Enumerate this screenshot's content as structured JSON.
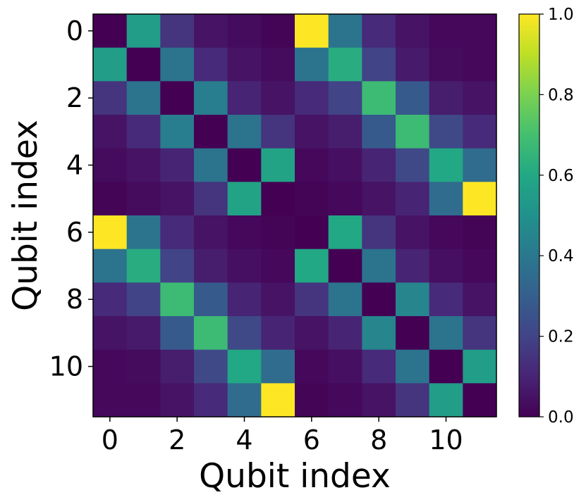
{
  "chart_data": {
    "type": "heatmap",
    "title": "",
    "xlabel": "Qubit index",
    "ylabel": "Qubit index",
    "rows": 12,
    "cols": 12,
    "x_ticks": [
      "0",
      "2",
      "4",
      "6",
      "8",
      "10"
    ],
    "y_ticks": [
      "0",
      "2",
      "4",
      "6",
      "8",
      "10"
    ],
    "x_tick_values": [
      0,
      2,
      4,
      6,
      8,
      10
    ],
    "y_tick_values": [
      0,
      2,
      4,
      6,
      8,
      10
    ],
    "colorbar": {
      "ticks": [
        "0.0",
        "0.2",
        "0.4",
        "0.6",
        "0.8",
        "1.0"
      ],
      "tick_values": [
        0.0,
        0.2,
        0.4,
        0.6,
        0.8,
        1.0
      ],
      "vmin": 0.0,
      "vmax": 1.0,
      "colormap": "viridis"
    },
    "values": [
      [
        0.0,
        0.55,
        0.15,
        0.05,
        0.03,
        0.01,
        1.0,
        0.38,
        0.12,
        0.05,
        0.02,
        0.02
      ],
      [
        0.55,
        0.0,
        0.38,
        0.12,
        0.05,
        0.03,
        0.38,
        0.62,
        0.2,
        0.07,
        0.03,
        0.02
      ],
      [
        0.15,
        0.38,
        0.0,
        0.42,
        0.1,
        0.05,
        0.12,
        0.2,
        0.68,
        0.28,
        0.08,
        0.05
      ],
      [
        0.05,
        0.12,
        0.42,
        0.0,
        0.38,
        0.15,
        0.05,
        0.08,
        0.28,
        0.68,
        0.22,
        0.12
      ],
      [
        0.03,
        0.05,
        0.1,
        0.38,
        0.0,
        0.58,
        0.02,
        0.04,
        0.1,
        0.22,
        0.6,
        0.35
      ],
      [
        0.01,
        0.03,
        0.05,
        0.15,
        0.58,
        0.0,
        0.01,
        0.02,
        0.05,
        0.1,
        0.35,
        1.0
      ],
      [
        1.0,
        0.38,
        0.12,
        0.05,
        0.02,
        0.01,
        0.0,
        0.6,
        0.15,
        0.05,
        0.02,
        0.01
      ],
      [
        0.38,
        0.62,
        0.2,
        0.08,
        0.04,
        0.02,
        0.6,
        0.0,
        0.38,
        0.1,
        0.04,
        0.02
      ],
      [
        0.12,
        0.2,
        0.68,
        0.28,
        0.1,
        0.05,
        0.15,
        0.38,
        0.0,
        0.45,
        0.12,
        0.05
      ],
      [
        0.05,
        0.07,
        0.28,
        0.68,
        0.22,
        0.1,
        0.05,
        0.1,
        0.45,
        0.0,
        0.38,
        0.15
      ],
      [
        0.02,
        0.03,
        0.08,
        0.22,
        0.6,
        0.35,
        0.02,
        0.04,
        0.12,
        0.38,
        0.0,
        0.55
      ],
      [
        0.02,
        0.02,
        0.05,
        0.12,
        0.35,
        1.0,
        0.01,
        0.02,
        0.05,
        0.15,
        0.55,
        0.0
      ]
    ]
  }
}
